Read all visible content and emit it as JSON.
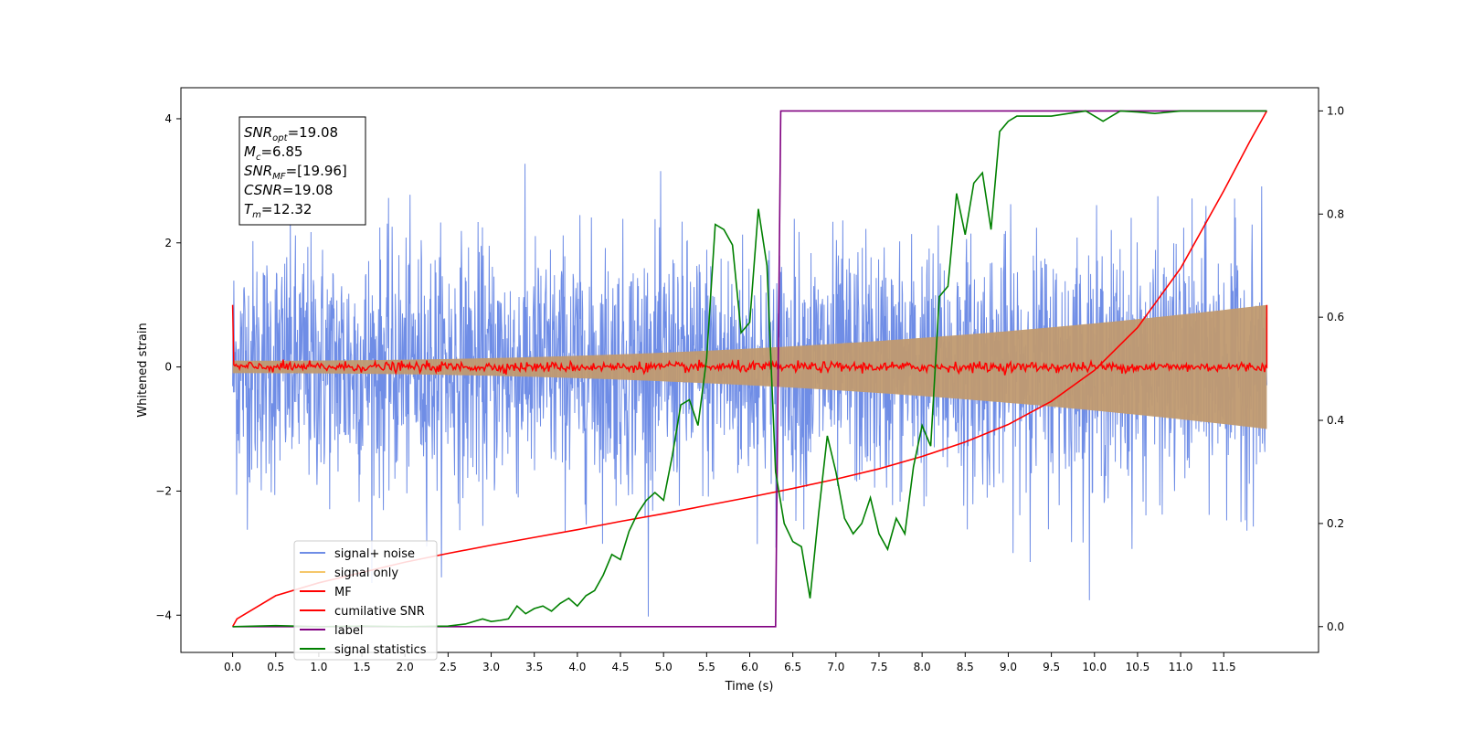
{
  "chart_data": {
    "type": "line",
    "xlabel": "Time (s)",
    "ylabel": "Whitened strain",
    "xlim": [
      -0.6,
      12.6
    ],
    "ylim": [
      -4.6,
      4.5
    ],
    "y2lim": [
      -0.05,
      1.045
    ],
    "x_ticks": [
      "0.0",
      "0.5",
      "1.0",
      "1.5",
      "2.0",
      "2.5",
      "3.0",
      "3.5",
      "4.0",
      "4.5",
      "5.0",
      "5.5",
      "6.0",
      "6.5",
      "7.0",
      "7.5",
      "8.0",
      "8.5",
      "9.0",
      "9.5",
      "10.0",
      "10.5",
      "11.0",
      "11.5"
    ],
    "y_ticks": [
      "4",
      "2",
      "0",
      "−2",
      "−4"
    ],
    "y2_ticks": [
      "1.0",
      "0.8",
      "0.6",
      "0.4",
      "0.2",
      "0.0"
    ],
    "legend_position": "lower-left",
    "colors": {
      "signal_noise": "#6f8de6",
      "signal_only": "#f5c76a",
      "signal_only_fill": "#c09a70",
      "mf": "#ff0000",
      "cumulative_snr": "#ff0000",
      "label": "#800080",
      "signal_statistics": "#008000"
    },
    "annotation": {
      "lines": [
        {
          "main": "SNR",
          "sub": "opt",
          "rest": "=19.08"
        },
        {
          "main": "M",
          "sub": "c",
          "rest": "=6.85"
        },
        {
          "main": "SNR",
          "sub": "MF",
          "rest": "=[19.96]"
        },
        {
          "main": "CSNR",
          "sub": "",
          "rest": "=19.08"
        },
        {
          "main": "T",
          "sub": "m",
          "rest": "=12.32"
        }
      ]
    },
    "series": [
      {
        "name": "signal+ noise",
        "axis": "left",
        "kind": "noise",
        "x_range": [
          0,
          12.0
        ],
        "amplitude_std": 1.0,
        "peak_range": [
          -4.1,
          4.05
        ]
      },
      {
        "name": "signal only",
        "axis": "left",
        "kind": "chirp",
        "x_range": [
          0,
          12.0
        ],
        "envelope_start": 0.1,
        "envelope_end": 1.0
      },
      {
        "name": "MF",
        "axis": "left",
        "kind": "flat",
        "x_range": [
          0,
          12.0
        ],
        "start_value": 1.0,
        "end_value": 1.0,
        "level": 0.0
      },
      {
        "name": "cumilative SNR",
        "axis": "right",
        "x": [
          0.0,
          0.05,
          0.5,
          1.0,
          1.5,
          2.0,
          2.5,
          3.0,
          3.5,
          4.0,
          4.5,
          5.0,
          5.5,
          6.0,
          6.5,
          7.0,
          7.5,
          8.0,
          8.5,
          9.0,
          9.5,
          10.0,
          10.5,
          11.0,
          11.5,
          11.8,
          12.0
        ],
        "values": [
          0.0,
          0.015,
          0.06,
          0.085,
          0.105,
          0.125,
          0.142,
          0.158,
          0.173,
          0.188,
          0.204,
          0.219,
          0.235,
          0.251,
          0.268,
          0.286,
          0.306,
          0.33,
          0.358,
          0.392,
          0.437,
          0.497,
          0.58,
          0.695,
          0.845,
          0.94,
          1.0
        ]
      },
      {
        "name": "label",
        "axis": "right",
        "x": [
          0.0,
          6.3,
          6.36,
          12.0
        ],
        "values": [
          0.0,
          0.0,
          1.0,
          1.0
        ]
      },
      {
        "name": "signal statistics",
        "axis": "right",
        "x": [
          0.0,
          0.5,
          1.0,
          1.5,
          2.0,
          2.5,
          2.7,
          2.8,
          2.9,
          3.0,
          3.1,
          3.2,
          3.3,
          3.4,
          3.5,
          3.6,
          3.7,
          3.8,
          3.9,
          4.0,
          4.1,
          4.2,
          4.3,
          4.4,
          4.5,
          4.6,
          4.7,
          4.8,
          4.9,
          5.0,
          5.1,
          5.2,
          5.3,
          5.4,
          5.5,
          5.6,
          5.7,
          5.8,
          5.9,
          6.0,
          6.1,
          6.2,
          6.3,
          6.4,
          6.5,
          6.6,
          6.7,
          6.8,
          6.9,
          7.0,
          7.1,
          7.2,
          7.3,
          7.4,
          7.5,
          7.6,
          7.7,
          7.8,
          7.9,
          8.0,
          8.1,
          8.2,
          8.3,
          8.4,
          8.5,
          8.6,
          8.7,
          8.8,
          8.9,
          9.0,
          9.1,
          9.3,
          9.5,
          9.7,
          9.9,
          10.1,
          10.3,
          10.5,
          10.7,
          11.0,
          11.5,
          12.0
        ],
        "values": [
          0.0,
          0.002,
          0.0,
          0.001,
          0.0,
          0.001,
          0.005,
          0.01,
          0.015,
          0.01,
          0.012,
          0.015,
          0.04,
          0.025,
          0.035,
          0.04,
          0.03,
          0.045,
          0.055,
          0.04,
          0.06,
          0.07,
          0.1,
          0.14,
          0.13,
          0.185,
          0.22,
          0.245,
          0.26,
          0.245,
          0.33,
          0.43,
          0.44,
          0.39,
          0.52,
          0.78,
          0.77,
          0.74,
          0.57,
          0.59,
          0.81,
          0.7,
          0.3,
          0.2,
          0.165,
          0.155,
          0.055,
          0.22,
          0.37,
          0.3,
          0.21,
          0.18,
          0.2,
          0.25,
          0.18,
          0.15,
          0.21,
          0.18,
          0.31,
          0.39,
          0.35,
          0.64,
          0.66,
          0.84,
          0.76,
          0.86,
          0.88,
          0.77,
          0.96,
          0.98,
          0.99,
          0.99,
          0.99,
          0.995,
          1.0,
          0.98,
          1.0,
          0.998,
          0.995,
          1.0,
          1.0,
          1.0
        ]
      }
    ]
  }
}
